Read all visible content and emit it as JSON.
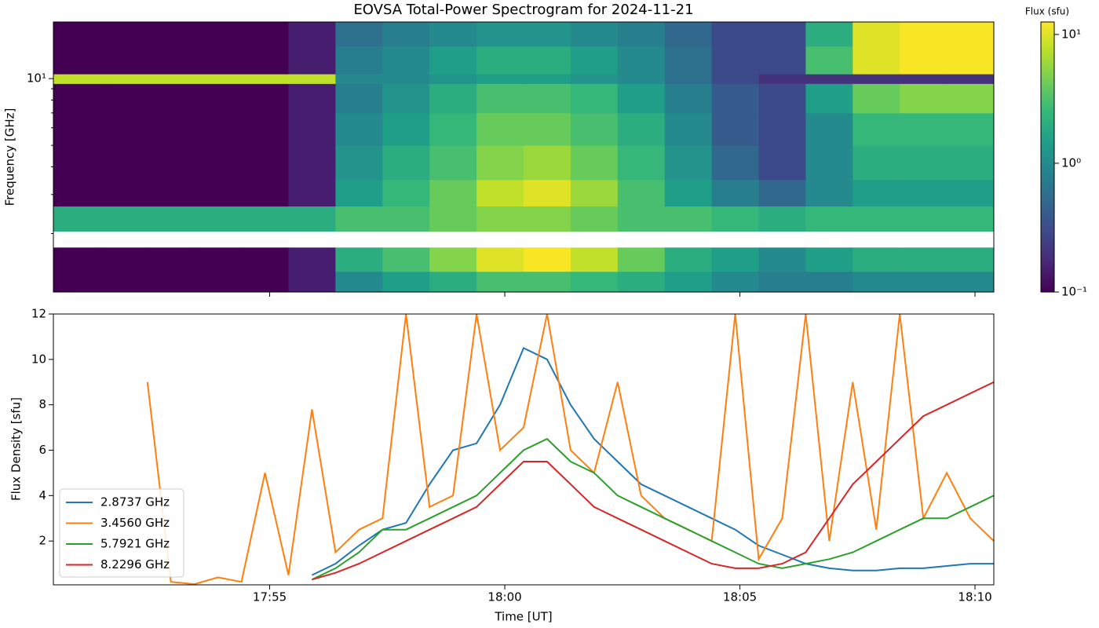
{
  "chart_data": [
    {
      "type": "heatmap",
      "title": "EOVSA Total-Power Spectrogram for 2024-11-21",
      "y_label": "Frequency [GHz]",
      "yscale": "log",
      "x_edges": [
        50.4,
        51.4,
        52.4,
        53.4,
        54.4,
        55.4,
        56.4,
        57.4,
        58.4,
        59.4,
        60.4,
        61.4,
        62.4,
        63.4,
        64.4,
        65.4,
        66.4,
        67.4,
        68.4,
        69.4,
        70.4
      ],
      "y_edges": [
        1.09,
        1.35,
        1.73,
        2.05,
        2.66,
        3.5,
        5,
        7,
        9.5,
        10.5,
        14,
        18
      ],
      "z": [
        [
          0.1,
          0.1,
          0.1,
          0.1,
          0.1,
          0.15,
          1,
          1.5,
          2,
          3,
          3,
          2.5,
          2,
          1.5,
          1,
          0.8,
          0.8,
          1,
          1,
          1
        ],
        [
          0.1,
          0.1,
          0.1,
          0.1,
          0.1,
          0.15,
          2,
          3,
          5,
          10,
          12,
          8,
          4,
          2,
          1.5,
          1,
          1.5,
          2,
          2,
          2
        ],
        [
          null,
          null,
          null,
          null,
          null,
          null,
          null,
          null,
          null,
          null,
          null,
          null,
          null,
          null,
          null,
          null,
          null,
          null,
          null,
          null
        ],
        [
          2,
          2,
          2,
          2,
          2,
          2,
          3,
          3,
          4,
          5,
          5,
          4,
          3,
          3,
          2.5,
          2,
          2.5,
          2.5,
          2.5,
          2.5
        ],
        [
          0.1,
          0.1,
          0.1,
          0.1,
          0.1,
          0.15,
          1.5,
          2.5,
          4,
          8,
          10,
          6,
          3,
          1.5,
          0.8,
          0.5,
          1,
          1.5,
          1.5,
          1.5
        ],
        [
          0.1,
          0.1,
          0.1,
          0.1,
          0.1,
          0.15,
          1.2,
          2,
          3,
          5,
          6,
          4,
          2.5,
          1.2,
          0.5,
          0.3,
          1,
          2,
          2,
          2
        ],
        [
          0.1,
          0.1,
          0.1,
          0.1,
          0.1,
          0.15,
          1,
          1.5,
          2.5,
          4,
          4,
          3,
          2,
          1,
          0.4,
          0.3,
          1,
          2.5,
          2.5,
          2.5
        ],
        [
          0.1,
          0.1,
          0.1,
          0.1,
          0.1,
          0.15,
          0.8,
          1.2,
          2,
          3,
          3,
          2.5,
          1.5,
          0.8,
          0.4,
          0.3,
          1.5,
          4,
          5,
          5
        ],
        [
          8,
          8,
          8,
          8,
          8,
          8,
          1,
          1,
          1.2,
          1.5,
          1.5,
          1.2,
          1,
          0.6,
          0.3,
          0.2,
          0.2,
          0.2,
          0.2,
          0.2
        ],
        [
          0.1,
          0.1,
          0.1,
          0.1,
          0.1,
          0.15,
          0.8,
          1,
          1.5,
          2,
          2,
          1.5,
          1,
          0.6,
          0.3,
          0.3,
          3,
          10,
          12,
          12
        ],
        [
          0.1,
          0.1,
          0.1,
          0.1,
          0.1,
          0.15,
          0.6,
          0.8,
          1,
          1.2,
          1.2,
          1,
          0.8,
          0.5,
          0.3,
          0.3,
          2,
          10,
          12,
          12
        ]
      ],
      "xlim": [
        50.4,
        70.4
      ],
      "ylim": [
        1.09,
        18
      ],
      "yticks": [
        {
          "value": 10,
          "label": "10¹"
        }
      ],
      "yminorticks": [
        2,
        3,
        4,
        5,
        6,
        7,
        8,
        9
      ],
      "colorbar": {
        "label": "Flux (sfu)",
        "colormap": "viridis",
        "scale": "log",
        "lim": [
          0.1,
          12.5
        ],
        "ticks": [
          {
            "value": 0.1,
            "label": "10⁻¹"
          },
          {
            "value": 1,
            "label": "10⁰"
          },
          {
            "value": 10,
            "label": "10¹"
          }
        ]
      }
    },
    {
      "type": "line",
      "x_label": "Time [UT]",
      "y_label": "Flux Density [sfu]",
      "x": [
        50.4,
        50.9,
        51.4,
        51.9,
        52.4,
        52.9,
        53.4,
        53.9,
        54.4,
        54.9,
        55.4,
        55.9,
        56.4,
        56.9,
        57.4,
        57.9,
        58.4,
        58.9,
        59.4,
        59.9,
        60.4,
        60.9,
        61.4,
        61.9,
        62.4,
        62.9,
        63.4,
        63.9,
        64.4,
        64.9,
        65.4,
        65.9,
        66.4,
        66.9,
        67.4,
        67.9,
        68.4,
        68.9,
        69.4,
        69.9,
        70.4
      ],
      "series": [
        {
          "name": "2.8737 GHz",
          "color": "#1f77b4",
          "values": [
            null,
            null,
            null,
            null,
            null,
            null,
            null,
            null,
            null,
            null,
            null,
            0.5,
            1,
            1.8,
            2.5,
            2.8,
            4.5,
            6,
            6.3,
            8,
            10.5,
            10,
            8,
            6.5,
            5.5,
            4.5,
            4,
            3.5,
            3,
            2.5,
            1.8,
            1.4,
            1,
            0.8,
            0.7,
            0.7,
            0.8,
            0.8,
            0.9,
            1,
            1
          ]
        },
        {
          "name": "3.4560 GHz",
          "color": "#ff7f0e",
          "values": [
            null,
            null,
            null,
            null,
            9,
            0.2,
            0.1,
            0.4,
            0.2,
            5,
            0.5,
            7.8,
            1.5,
            2.5,
            3,
            12,
            3.5,
            4,
            12,
            6,
            7,
            12,
            6,
            5,
            9,
            4,
            3,
            2.5,
            2,
            12,
            1.2,
            3,
            12,
            2,
            9,
            2.5,
            12,
            3,
            5,
            3,
            2
          ]
        },
        {
          "name": "5.7921 GHz",
          "color": "#2ca02c",
          "values": [
            null,
            null,
            null,
            null,
            null,
            null,
            null,
            null,
            null,
            null,
            null,
            0.3,
            0.8,
            1.5,
            2.5,
            2.5,
            3,
            3.5,
            4,
            5,
            6,
            6.5,
            5.5,
            5,
            4,
            3.5,
            3,
            2.5,
            2,
            1.5,
            1,
            0.8,
            1,
            1.2,
            1.5,
            2,
            2.5,
            3,
            3,
            3.5,
            4
          ]
        },
        {
          "name": "8.2296 GHz",
          "color": "#d62728",
          "values": [
            null,
            null,
            null,
            null,
            null,
            null,
            null,
            null,
            null,
            null,
            null,
            0.3,
            0.6,
            1,
            1.5,
            2,
            2.5,
            3,
            3.5,
            4.5,
            5.5,
            5.5,
            4.5,
            3.5,
            3,
            2.5,
            2,
            1.5,
            1,
            0.8,
            0.8,
            1,
            1.5,
            3,
            4.5,
            5.5,
            6.5,
            7.5,
            8,
            8.5,
            9
          ]
        }
      ],
      "xlim": [
        50.4,
        70.4
      ],
      "ylim": [
        0.07,
        12
      ],
      "xticks": [
        {
          "value": 55,
          "label": "17:55"
        },
        {
          "value": 60,
          "label": "18:00"
        },
        {
          "value": 65,
          "label": "18:05"
        },
        {
          "value": 70,
          "label": "18:10"
        }
      ],
      "yticks": [
        2,
        4,
        6,
        8,
        10,
        12
      ],
      "legend": "lower left"
    }
  ]
}
